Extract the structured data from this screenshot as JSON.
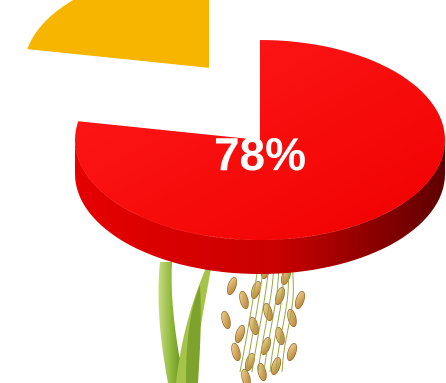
{
  "chart_data": {
    "type": "pie",
    "title": "",
    "slices": [
      {
        "value": 78,
        "label": "78%",
        "color": "#ff0000"
      },
      {
        "value": 22,
        "label": "",
        "color": "#f7b500"
      }
    ],
    "style": "3d-exploded",
    "legend": "none"
  },
  "decoration": {
    "illustration": "rice-plant-with-grains"
  }
}
